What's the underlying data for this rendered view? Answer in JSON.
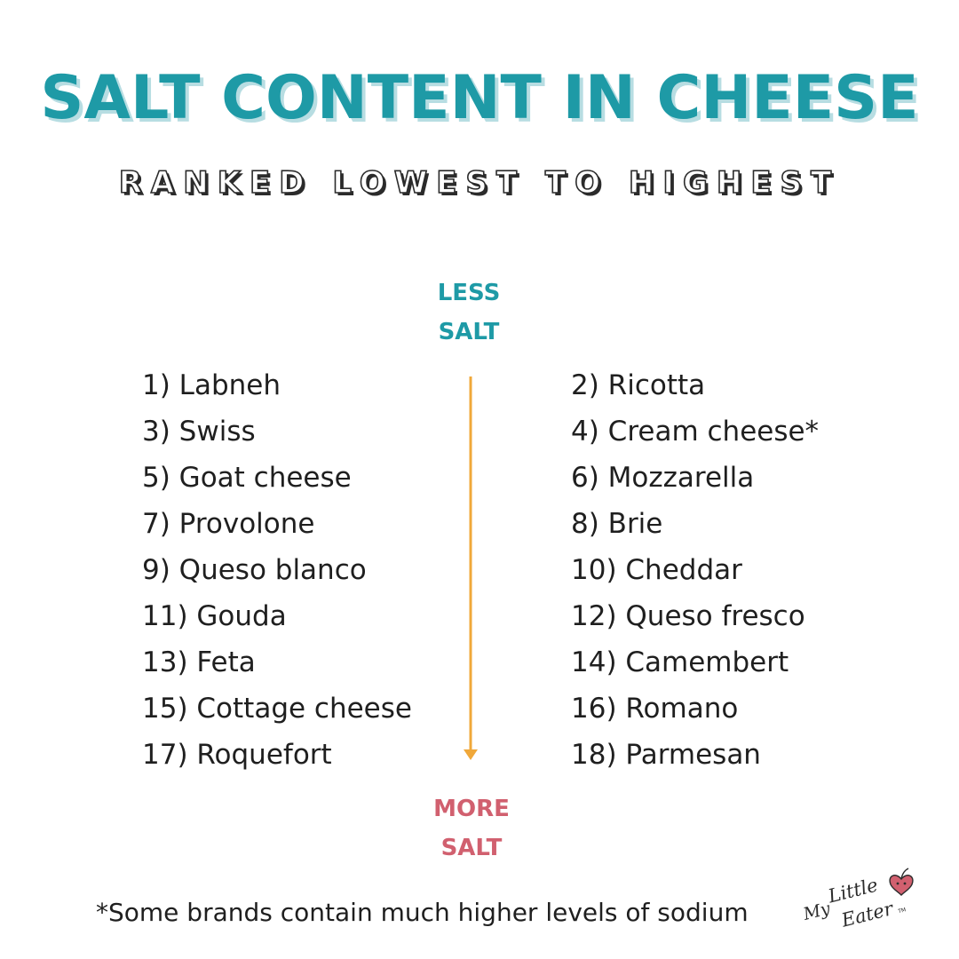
{
  "header": {
    "title": "SALT CONTENT IN CHEESE",
    "subtitle": "RANKED LOWEST TO HIGHEST"
  },
  "scale": {
    "top_label_line1": "LESS",
    "top_label_line2": "SALT",
    "bottom_label_line1": "MORE",
    "bottom_label_line2": "SALT"
  },
  "cheeses": {
    "left": [
      "1) Labneh",
      "3) Swiss",
      "5) Goat cheese",
      "7) Provolone",
      "9) Queso blanco",
      "11) Gouda",
      "13) Feta",
      "15) Cottage cheese",
      "17) Roquefort"
    ],
    "right": [
      "2) Ricotta",
      "4) Cream cheese*",
      "6) Mozzarella",
      "8) Brie",
      "10) Cheddar",
      "12) Queso fresco",
      "14) Camembert",
      "16) Romano",
      "18) Parmesan"
    ]
  },
  "footnote": "*Some brands contain much higher levels of sodium",
  "logo": {
    "text": "My Little Eater",
    "trademark": "TM",
    "icon": "apple-heart-icon"
  },
  "colors": {
    "teal": "#1e9aa6",
    "teal_shadow": "#b7dde2",
    "pink": "#d1606f",
    "arrow": "#f0a83a",
    "text": "#1f1f1f"
  }
}
